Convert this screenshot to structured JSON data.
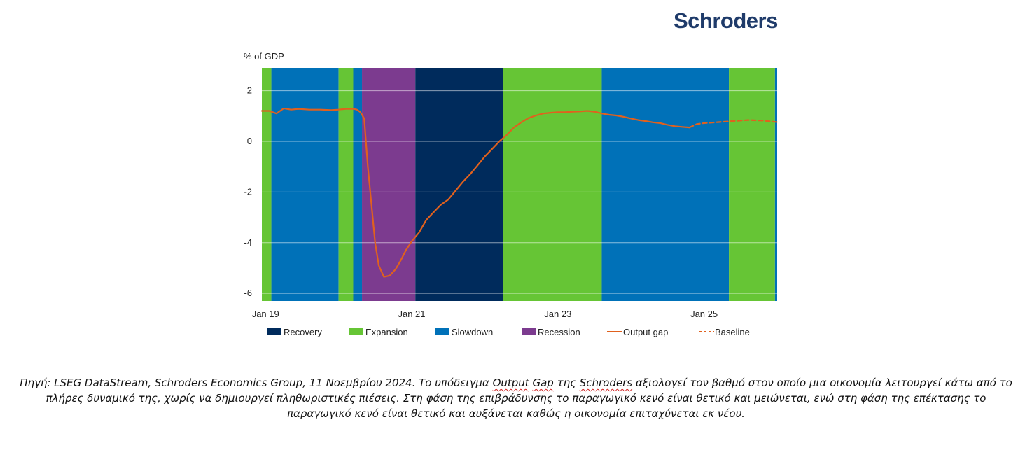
{
  "logo": {
    "text": "Schroders"
  },
  "chart_data": {
    "type": "line",
    "ylabel": "% of GDP",
    "ylim": [
      -6.3,
      2.9
    ],
    "yticks": [
      2,
      0,
      -2,
      -4,
      -6
    ],
    "xlim": [
      2018.95,
      2026.0
    ],
    "xticks": [
      {
        "label": "Jan 19",
        "x": 2019.0
      },
      {
        "label": "Jan 21",
        "x": 2021.0
      },
      {
        "label": "Jan 23",
        "x": 2023.0
      },
      {
        "label": "Jan 25",
        "x": 2025.0
      }
    ],
    "phase_colors": {
      "Recovery": "#002b5c",
      "Expansion": "#66c535",
      "Slowdown": "#0071b8",
      "Recession": "#7c3b8f"
    },
    "phases": [
      {
        "phase": "Expansion",
        "start": 2018.95,
        "end": 2019.08
      },
      {
        "phase": "Slowdown",
        "start": 2019.08,
        "end": 2020.0
      },
      {
        "phase": "Expansion",
        "start": 2020.0,
        "end": 2020.2
      },
      {
        "phase": "Slowdown",
        "start": 2020.2,
        "end": 2020.32
      },
      {
        "phase": "Recession",
        "start": 2020.32,
        "end": 2021.05
      },
      {
        "phase": "Recovery",
        "start": 2021.05,
        "end": 2022.25
      },
      {
        "phase": "Expansion",
        "start": 2022.25,
        "end": 2023.6
      },
      {
        "phase": "Slowdown",
        "start": 2023.6,
        "end": 2025.34
      },
      {
        "phase": "Expansion",
        "start": 2025.34,
        "end": 2025.97
      },
      {
        "phase": "Slowdown",
        "start": 2025.97,
        "end": 2026.0
      }
    ],
    "series": [
      {
        "name": "Output gap",
        "style": "solid",
        "color": "#e0611e",
        "x": [
          2018.95,
          2019.05,
          2019.15,
          2019.25,
          2019.35,
          2019.45,
          2019.6,
          2019.75,
          2019.9,
          2020.0,
          2020.1,
          2020.2,
          2020.25,
          2020.3,
          2020.35,
          2020.4,
          2020.45,
          2020.5,
          2020.55,
          2020.62,
          2020.7,
          2020.78,
          2020.85,
          2020.92,
          2021.0,
          2021.1,
          2021.2,
          2021.3,
          2021.4,
          2021.5,
          2021.6,
          2021.7,
          2021.8,
          2021.9,
          2022.0,
          2022.1,
          2022.2,
          2022.3,
          2022.4,
          2022.5,
          2022.6,
          2022.7,
          2022.8,
          2022.9,
          2023.0,
          2023.1,
          2023.2,
          2023.3,
          2023.4,
          2023.5,
          2023.6,
          2023.7,
          2023.8,
          2023.9,
          2024.0,
          2024.1,
          2024.2,
          2024.3,
          2024.4,
          2024.5,
          2024.6,
          2024.7,
          2024.8
        ],
        "y": [
          1.2,
          1.2,
          1.1,
          1.3,
          1.25,
          1.28,
          1.25,
          1.25,
          1.23,
          1.25,
          1.28,
          1.28,
          1.25,
          1.15,
          0.9,
          -1.0,
          -2.5,
          -4.0,
          -4.9,
          -5.35,
          -5.3,
          -5.05,
          -4.7,
          -4.3,
          -3.95,
          -3.6,
          -3.1,
          -2.8,
          -2.5,
          -2.3,
          -1.95,
          -1.6,
          -1.3,
          -0.95,
          -0.6,
          -0.3,
          0.0,
          0.25,
          0.55,
          0.75,
          0.92,
          1.02,
          1.1,
          1.13,
          1.15,
          1.15,
          1.17,
          1.18,
          1.2,
          1.17,
          1.1,
          1.05,
          1.02,
          0.97,
          0.9,
          0.84,
          0.8,
          0.75,
          0.72,
          0.65,
          0.6,
          0.57,
          0.55
        ]
      },
      {
        "name": "Baseline",
        "style": "dashed",
        "color": "#e0611e",
        "x": [
          2024.8,
          2024.9,
          2025.0,
          2025.2,
          2025.4,
          2025.6,
          2025.8,
          2026.0
        ],
        "y": [
          0.55,
          0.68,
          0.72,
          0.76,
          0.8,
          0.84,
          0.82,
          0.76
        ]
      }
    ],
    "legend": [
      {
        "label": "Recovery",
        "kind": "box",
        "color": "#002b5c"
      },
      {
        "label": "Expansion",
        "kind": "box",
        "color": "#66c535"
      },
      {
        "label": "Slowdown",
        "kind": "box",
        "color": "#0071b8"
      },
      {
        "label": "Recession",
        "kind": "box",
        "color": "#7c3b8f"
      },
      {
        "label": "Output gap",
        "kind": "line",
        "color": "#e0611e"
      },
      {
        "label": "Baseline",
        "kind": "dash",
        "color": "#e0611e"
      }
    ],
    "legend_position": "bottom",
    "grid": true
  },
  "caption": {
    "p1": "Πηγή: LSEG DataStream, Schroders Economics Group, 11 Νοεμβρίου 2024. Το υπόδειγμα ",
    "u1": "Output",
    "p2": " ",
    "u2": "Gap",
    "p3": " της ",
    "u3": "Schroders",
    "p4": " αξιολογεί τον βαθμό στον οποίο μια οικονομία λειτουργεί κάτω από το πλήρες δυναμικό της, χωρίς να δημιουργεί πληθωριστικές πιέσεις. Στη φάση της επιβράδυνσης το παραγωγικό κενό είναι θετικό και μειώνεται, ενώ στη φάση της επέκτασης το παραγωγικό κενό είναι θετικό και αυξάνεται καθώς η οικονομία επιταχύνεται εκ νέου."
  }
}
